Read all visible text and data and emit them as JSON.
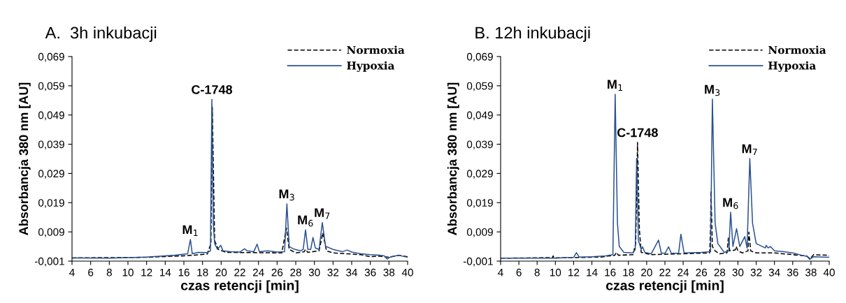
{
  "chart_data": [
    {
      "type": "line",
      "title": "A.  3h inkubacji",
      "xlabel": "czas retencji [min]",
      "ylabel": "Absorbancja 380 nm [AU]",
      "legend": "top right",
      "grid": false,
      "xlim": [
        4,
        40
      ],
      "xticks": [
        4,
        6,
        8,
        10,
        12,
        14,
        16,
        18,
        20,
        22,
        24,
        26,
        28,
        30,
        32,
        34,
        36,
        38,
        40
      ],
      "ylim": [
        -0.001,
        0.069
      ],
      "yticks": [
        {
          "value": -0.001,
          "label": "-0,001"
        },
        {
          "value": 0.009,
          "label": "0,009"
        },
        {
          "value": 0.019,
          "label": "0,019"
        },
        {
          "value": 0.029,
          "label": "0,029"
        },
        {
          "value": 0.039,
          "label": "0,039"
        },
        {
          "value": 0.049,
          "label": "0,049"
        },
        {
          "value": 0.059,
          "label": "0,059"
        },
        {
          "value": 0.069,
          "label": "0,069"
        }
      ],
      "series": [
        {
          "name": "Normoxia",
          "color": "#000000",
          "line_style": "dashed",
          "x": [
            4,
            12,
            16,
            18.5,
            18.9,
            19.05,
            19.3,
            19.7,
            20.5,
            26.5,
            27.0,
            27.3,
            28,
            28.9,
            29.05,
            29.3,
            30.5,
            30.9,
            31.3,
            32,
            35,
            36,
            37,
            38,
            39,
            40
          ],
          "values": [
            0.0001,
            0.0003,
            0.0008,
            0.0014,
            0.005,
            0.0517,
            0.006,
            0.003,
            0.002,
            0.0018,
            0.0103,
            0.003,
            0.0018,
            0.0022,
            0.003,
            0.002,
            0.0025,
            0.0087,
            0.0025,
            0.0018,
            0.0012,
            0.0005,
            0.0007,
            0.0003,
            0.001,
            0.0005
          ]
        },
        {
          "name": "Hypoxia",
          "color": "#2a5290",
          "line_style": "solid",
          "x": [
            4,
            8,
            12,
            15,
            16.4,
            16.7,
            16.9,
            17.5,
            18.5,
            18.85,
            19.0,
            19.15,
            19.3,
            19.6,
            19.95,
            20.2,
            21,
            22,
            22.5,
            22.8,
            23.5,
            23.85,
            24.1,
            25,
            26,
            26.8,
            27.05,
            27.3,
            27.8,
            28.5,
            28.8,
            29.05,
            29.3,
            29.6,
            29.85,
            30.1,
            30.5,
            30.85,
            31.2,
            31.5,
            32,
            33,
            33.5,
            34,
            35,
            36,
            37,
            37.5,
            37.8,
            38.2,
            39,
            40
          ],
          "values": [
            0.0001,
            0.0,
            0.0004,
            0.001,
            0.0015,
            0.0064,
            0.0015,
            0.002,
            0.0019,
            0.0025,
            0.0543,
            0.012,
            0.005,
            0.003,
            0.0044,
            0.0025,
            0.0022,
            0.0021,
            0.0032,
            0.0025,
            0.0022,
            0.0048,
            0.0022,
            0.0025,
            0.0021,
            0.0022,
            0.0186,
            0.004,
            0.0031,
            0.0025,
            0.003,
            0.0097,
            0.003,
            0.003,
            0.0071,
            0.0035,
            0.003,
            0.0122,
            0.004,
            0.0037,
            0.003,
            0.0022,
            0.0028,
            0.0021,
            0.0015,
            0.0012,
            0.001,
            0.0008,
            -0.0003,
            0.0005,
            0.001,
            0.0003
          ]
        }
      ],
      "annotations": [
        {
          "text": "M$_{1}$",
          "x": 16.7,
          "y": 0.0064
        },
        {
          "text": "C-1748",
          "x": 19.0,
          "y": 0.0543
        },
        {
          "text": "M$_{3}$",
          "x": 27.05,
          "y": 0.0186
        },
        {
          "text": "M$_{6}$",
          "x": 29.05,
          "y": 0.0097
        },
        {
          "text": "M$_{7}$",
          "x": 30.85,
          "y": 0.0122
        }
      ]
    },
    {
      "type": "line",
      "title": "B. 12h inkubacji",
      "xlabel": "czas retencji [min]",
      "ylabel": "Absorbancja 380 nm [AU]",
      "legend": "top right",
      "grid": false,
      "xlim": [
        4,
        40
      ],
      "xticks": [
        4,
        6,
        8,
        10,
        12,
        14,
        16,
        18,
        20,
        22,
        24,
        26,
        28,
        30,
        32,
        34,
        36,
        38,
        40
      ],
      "ylim": [
        -0.001,
        0.069
      ],
      "yticks": [
        {
          "value": -0.001,
          "label": "-0,001"
        },
        {
          "value": 0.009,
          "label": "0,009"
        },
        {
          "value": 0.019,
          "label": "0,019"
        },
        {
          "value": 0.029,
          "label": "0,029"
        },
        {
          "value": 0.039,
          "label": "0,039"
        },
        {
          "value": 0.049,
          "label": "0,049"
        },
        {
          "value": 0.059,
          "label": "0,059"
        },
        {
          "value": 0.069,
          "label": "0,069"
        }
      ],
      "series": [
        {
          "name": "Normoxia",
          "color": "#000000",
          "line_style": "dashed",
          "x": [
            4,
            9.7,
            9.75,
            9.85,
            12,
            15,
            16.5,
            16.7,
            16.9,
            18.5,
            18.8,
            19.0,
            19.2,
            19.4,
            20.5,
            26.9,
            27.0,
            27.05,
            27.2,
            27.5,
            28,
            28.8,
            28.95,
            29.1,
            29.7,
            29.8,
            30.0,
            30.5,
            31.1,
            31.2,
            31.4,
            32,
            34,
            36,
            37.5,
            37.9,
            38.3,
            40
          ],
          "values": [
            0.0,
            0.0002,
            0.0008,
            0.0001,
            0.0002,
            0.0004,
            0.001,
            0.002,
            0.001,
            0.0012,
            0.005,
            0.0396,
            0.01,
            0.002,
            0.0012,
            0.0018,
            0.01,
            0.0229,
            0.004,
            0.0025,
            0.0015,
            0.0018,
            0.0069,
            0.0025,
            0.0028,
            0.004,
            0.0025,
            0.0018,
            0.0025,
            0.0089,
            0.0025,
            0.0018,
            0.0018,
            0.0012,
            0.0008,
            -0.0002,
            0.0012,
            0.001
          ]
        },
        {
          "name": "Hypoxia",
          "color": "#2a5290",
          "line_style": "solid",
          "x": [
            4,
            10,
            12,
            12.3,
            12.6,
            14,
            15.5,
            16.3,
            16.55,
            16.8,
            17,
            17.5,
            18.5,
            18.75,
            18.9,
            19.1,
            19.4,
            19.55,
            19.8,
            20.5,
            21.3,
            21.6,
            22,
            22.4,
            22.7,
            23.5,
            23.75,
            24.1,
            26,
            27,
            27.2,
            27.5,
            27.8,
            28.5,
            29,
            29.2,
            29.45,
            29.85,
            30.2,
            30.75,
            31,
            31.3,
            31.6,
            32,
            33,
            33.1,
            33.3,
            33.55,
            34,
            35,
            36,
            37,
            37.6,
            37.85,
            38.3,
            40
          ],
          "values": [
            0.0,
            0.0,
            0.0003,
            0.0019,
            0.0004,
            0.0005,
            0.0008,
            0.0012,
            0.0561,
            0.012,
            0.004,
            0.002,
            0.0018,
            0.003,
            0.0342,
            0.006,
            0.003,
            0.0039,
            0.002,
            0.0015,
            0.0062,
            0.0018,
            0.0016,
            0.0039,
            0.0017,
            0.0017,
            0.0082,
            0.0018,
            0.002,
            0.0022,
            0.0544,
            0.012,
            0.005,
            0.002,
            0.0025,
            0.0157,
            0.004,
            0.0101,
            0.004,
            0.0074,
            0.0035,
            0.0341,
            0.012,
            0.005,
            0.0035,
            0.0044,
            0.0035,
            0.004,
            0.0025,
            0.0022,
            0.0018,
            0.001,
            0.0006,
            -0.0004,
            0.0005,
            0.0003
          ]
        }
      ],
      "annotations": [
        {
          "text": "M$_{1}$",
          "x": 16.55,
          "y": 0.0561
        },
        {
          "text": "C-1748",
          "x": 19.0,
          "y": 0.0396
        },
        {
          "text": "M$_{3}$",
          "x": 27.2,
          "y": 0.0544
        },
        {
          "text": "M$_{6}$",
          "x": 29.2,
          "y": 0.0157
        },
        {
          "text": "M$_{7}$",
          "x": 31.3,
          "y": 0.0341
        }
      ]
    }
  ]
}
